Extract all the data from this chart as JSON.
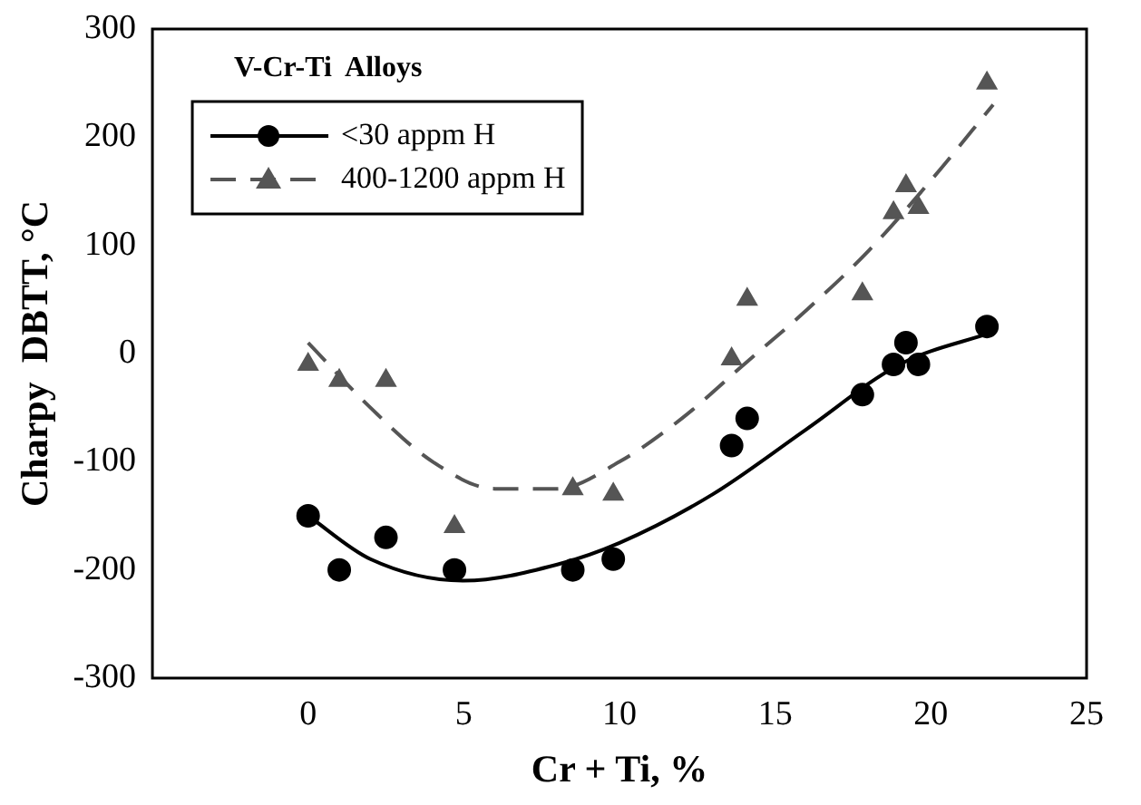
{
  "chart_data": {
    "type": "scatter",
    "title": "V-Cr-Ti  Alloys",
    "xlabel": "Cr + Ti, %",
    "ylabel": "Charpy  DBTT, °C",
    "xlim": [
      -5,
      25
    ],
    "xticks": [
      0,
      5,
      10,
      15,
      20,
      25
    ],
    "ylim": [
      -300,
      300
    ],
    "yticks": [
      -300,
      -200,
      -100,
      0,
      100,
      200,
      300
    ],
    "grid": false,
    "legend": "top left",
    "series": [
      {
        "name": "<30 appm H",
        "marker": "circle",
        "color": "#000000",
        "x": [
          0,
          1,
          2.5,
          4.7,
          8.5,
          9.8,
          13.6,
          14.1,
          17.8,
          18.8,
          19.2,
          19.6,
          21.8
        ],
        "values": [
          -150,
          -200,
          -170,
          -200,
          -200,
          -190,
          -85,
          -60,
          -38,
          -10,
          10,
          -10,
          25
        ]
      },
      {
        "name": "400-1200 appm H",
        "marker": "triangle",
        "color": "#555555",
        "x": [
          0,
          1,
          2.5,
          4.7,
          8.5,
          9.8,
          13.6,
          14.1,
          17.8,
          18.8,
          19.2,
          19.6,
          21.8
        ],
        "values": [
          -10,
          -25,
          -25,
          -160,
          -125,
          -130,
          -5,
          50,
          55,
          130,
          155,
          135,
          250
        ]
      },
      {
        "type": "line",
        "line_style": "solid",
        "color": "#000000",
        "x": [
          0,
          2,
          5,
          8,
          10,
          13,
          16,
          19,
          22
        ],
        "values": [
          -150,
          -190,
          -210,
          -195,
          -175,
          -130,
          -70,
          -10,
          20
        ]
      },
      {
        "type": "line",
        "line_style": "dashed",
        "color": "#555555",
        "x": [
          0,
          2,
          4,
          6,
          8,
          10,
          12,
          14,
          16,
          18,
          20,
          22
        ],
        "values": [
          10,
          -50,
          -100,
          -125,
          -125,
          -100,
          -60,
          -10,
          40,
          95,
          160,
          230
        ]
      }
    ]
  }
}
